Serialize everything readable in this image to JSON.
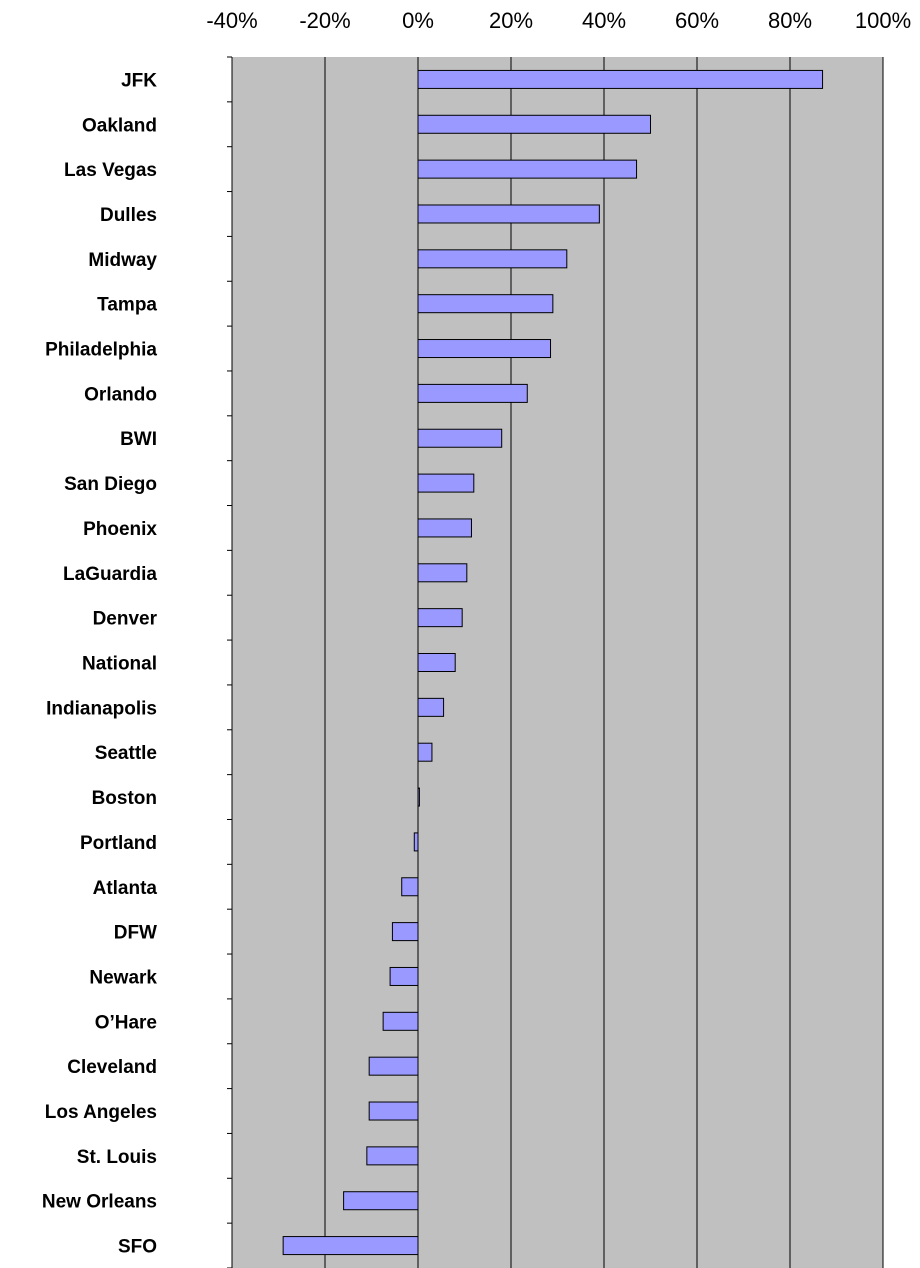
{
  "chart_data": {
    "type": "bar",
    "orientation": "horizontal",
    "title": "",
    "xlabel": "",
    "ylabel": "",
    "xlim": [
      -40,
      100
    ],
    "x_ticks": [
      -40,
      -20,
      0,
      20,
      40,
      60,
      80,
      100
    ],
    "x_tick_labels": [
      "-40%",
      "-20%",
      "0%",
      "20%",
      "40%",
      "60%",
      "80%",
      "100%"
    ],
    "x_axis_position": "top",
    "grid": true,
    "legend": "none",
    "colors": {
      "plot_background": "#c0c0c0",
      "bar_fill": "#9999ff",
      "bar_stroke": "#000000",
      "gridline": "#000000"
    },
    "categories": [
      "JFK",
      "Oakland",
      "Las Vegas",
      "Dulles",
      "Midway",
      "Tampa",
      "Philadelphia",
      "Orlando",
      "BWI",
      "San Diego",
      "Phoenix",
      "LaGuardia",
      "Denver",
      "National",
      "Indianapolis",
      "Seattle",
      "Boston",
      "Portland",
      "Atlanta",
      "DFW",
      "Newark",
      "O’Hare",
      "Cleveland",
      "Los Angeles",
      "St. Louis",
      "New Orleans",
      "SFO"
    ],
    "series": [
      {
        "values": [
          87,
          50,
          47,
          39,
          32,
          29,
          28.5,
          23.5,
          18,
          12,
          11.5,
          10.5,
          9.5,
          8,
          5.5,
          3,
          0.3,
          -0.8,
          -3.5,
          -5.5,
          -6,
          -7.5,
          -10.5,
          -10.5,
          -11,
          -16,
          -29
        ]
      }
    ]
  }
}
